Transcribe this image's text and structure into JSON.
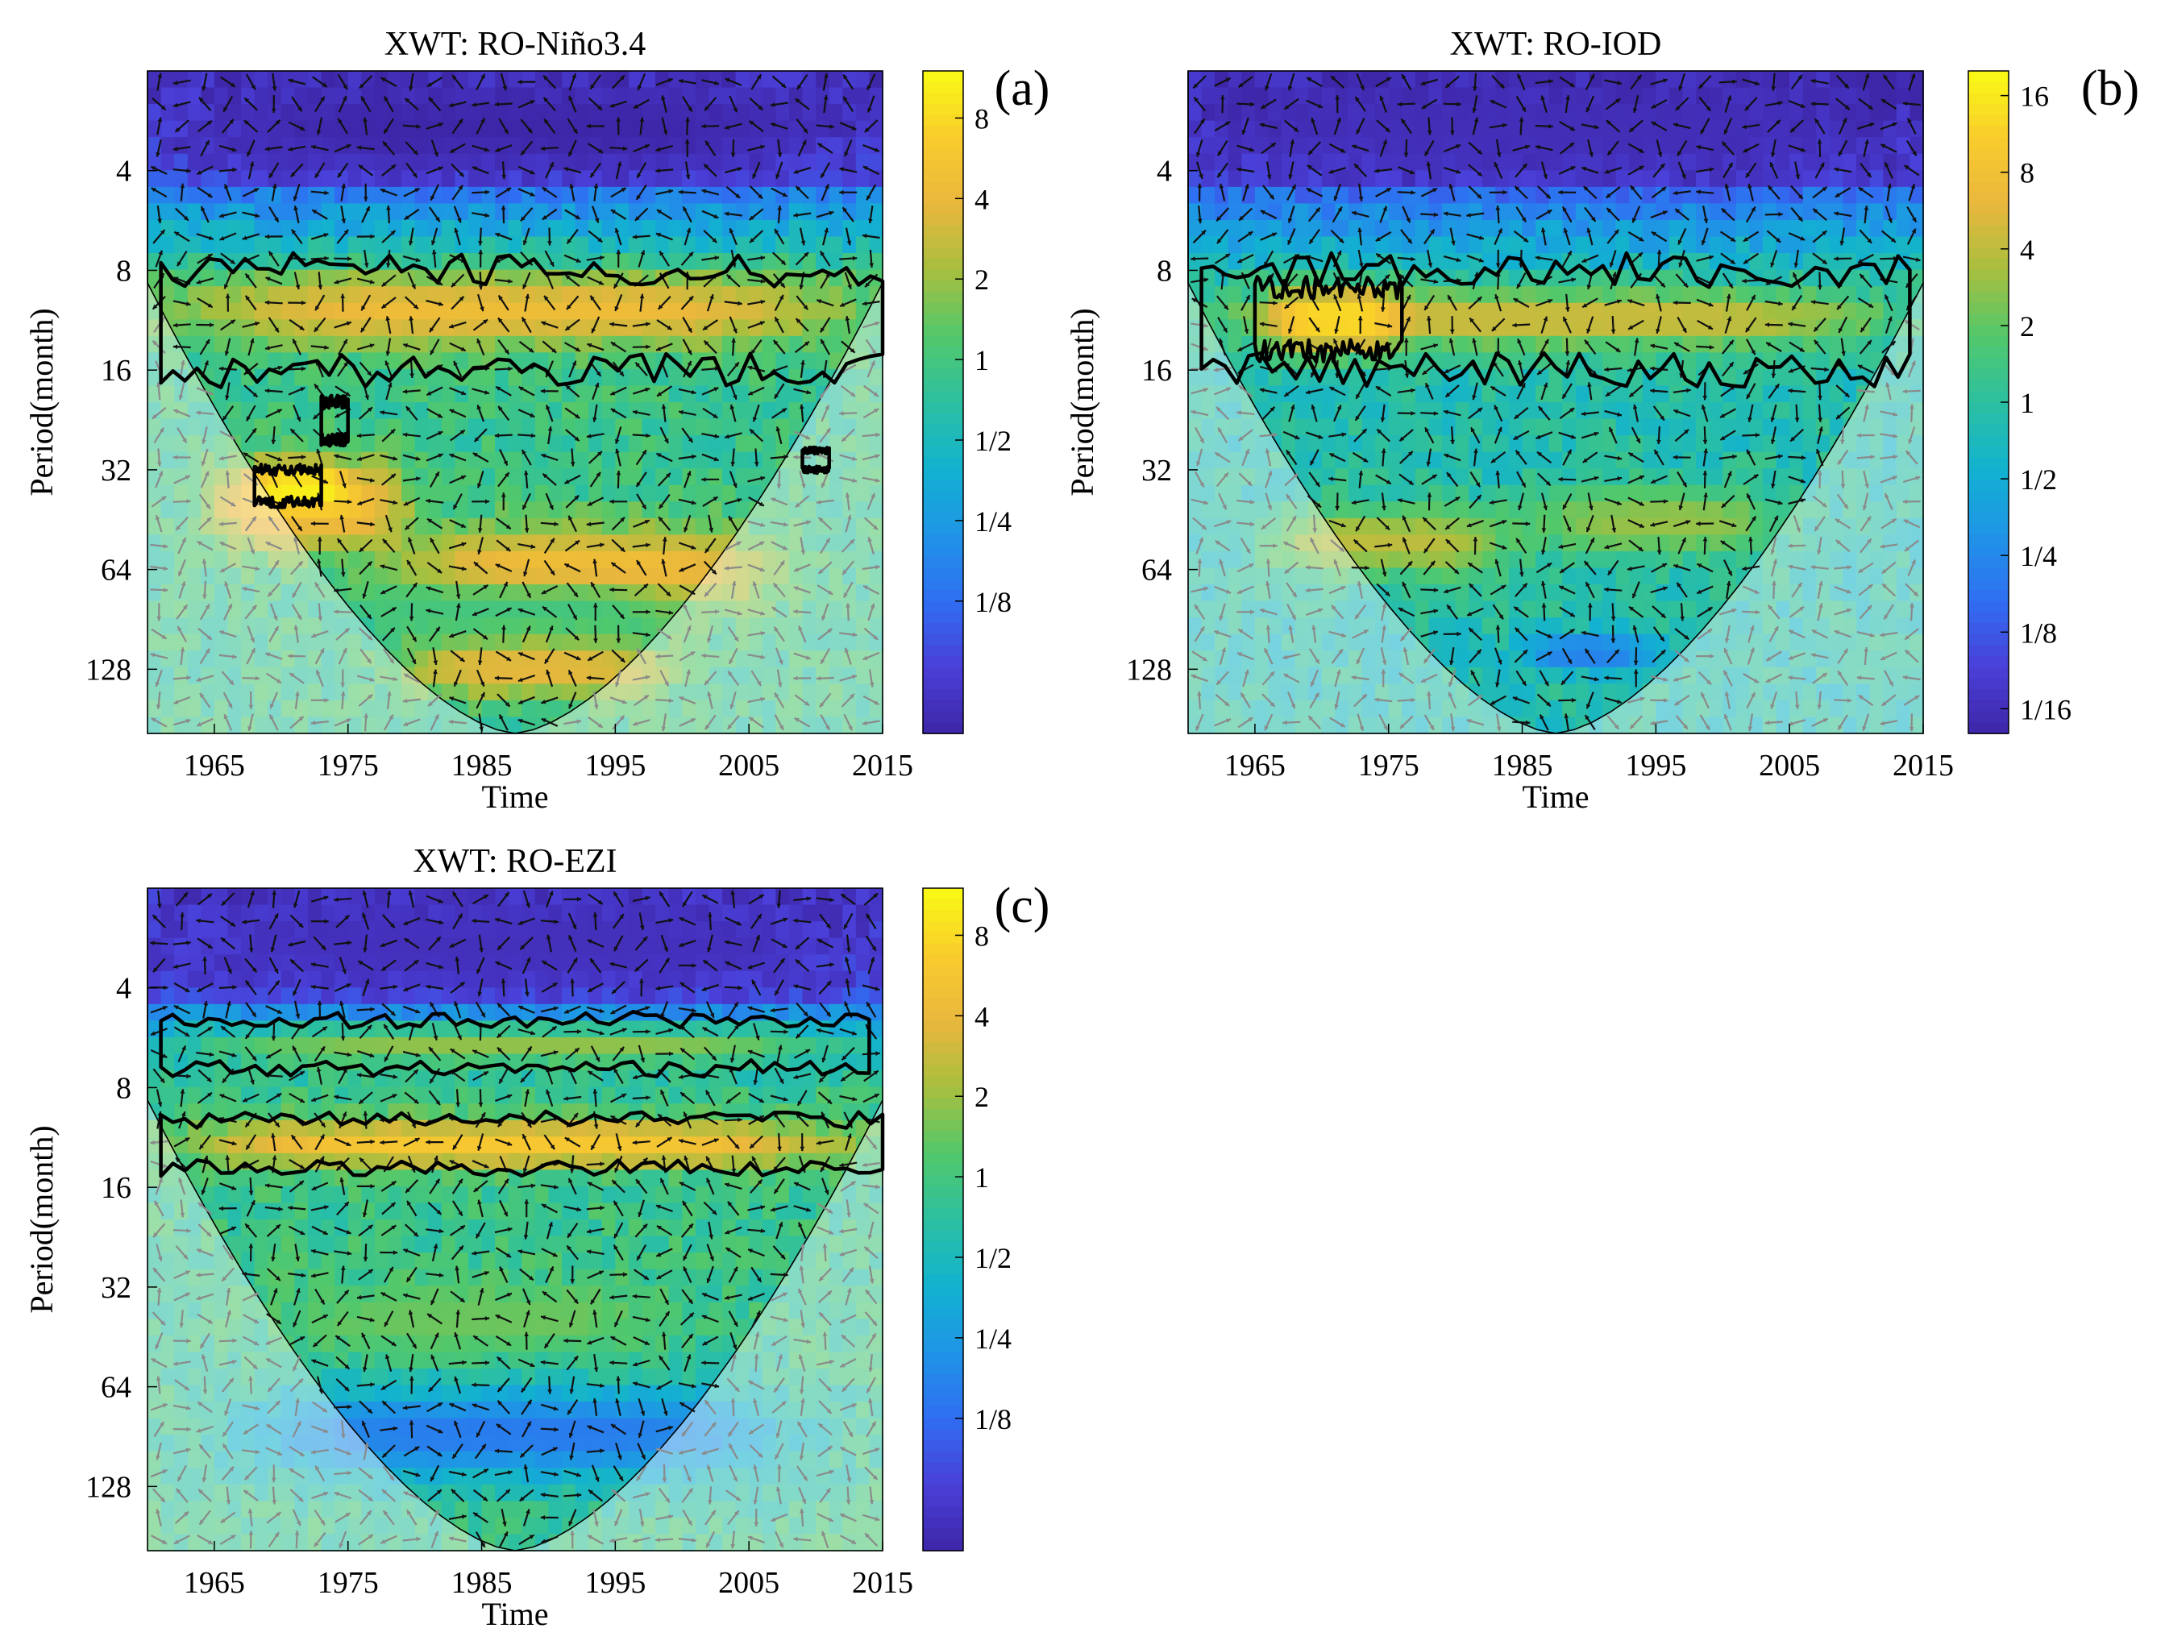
{
  "figure": {
    "label": "Cross wavelet transform panels"
  },
  "colors": {
    "ramp": [
      "#3e26a8",
      "#4a3fd8",
      "#2f6ef2",
      "#1f94e6",
      "#12b2d0",
      "#2cc0a0",
      "#52c86b",
      "#a8bf3e",
      "#eab73d",
      "#f9cc2c",
      "#f9fb14"
    ],
    "contour": "#000000",
    "coi_mask": "#ffffff",
    "arrow_inside": "#111111",
    "arrow_outside": "#8a8a8a"
  },
  "chart_data": [
    {
      "id": "a",
      "type": "heatmap",
      "subtype": "cross-wavelet-power",
      "title": "XWT: RO-Niño3.4",
      "panel_label": "(a)",
      "xlabel": "Time",
      "ylabel": "Period(month)",
      "xlim": [
        1960,
        2015
      ],
      "ylim": [
        2,
        200
      ],
      "y_scale": "log2",
      "x_ticks": [
        1965,
        1975,
        1985,
        1995,
        2005,
        2015
      ],
      "y_ticks": [
        4,
        8,
        16,
        32,
        64,
        128
      ],
      "colorbar": {
        "scale": "log2",
        "range": [
          0.04,
          12
        ],
        "ticks": [
          8,
          4,
          2,
          1,
          0.5,
          0.25,
          0.125
        ],
        "tick_labels": [
          "8",
          "4",
          "2",
          "1",
          "1/2",
          "1/4",
          "1/8"
        ]
      },
      "regions": [
        {
          "x": [
            1960,
            2015
          ],
          "period": [
            8,
            14
          ],
          "power": 4.5
        },
        {
          "x": [
            1964,
            1980
          ],
          "period": [
            28,
            60
          ],
          "power": 6
        },
        {
          "x": [
            1978,
            2008
          ],
          "period": [
            45,
            90
          ],
          "power": 5
        },
        {
          "x": [
            1978,
            2000
          ],
          "period": [
            100,
            160
          ],
          "power": 4
        },
        {
          "x": [
            1968,
            1975
          ],
          "period": [
            32,
            40
          ],
          "power": 12
        },
        {
          "x": [
            1975,
            2000
          ],
          "period": [
            70,
            100
          ],
          "power": 1
        },
        {
          "x": [
            1960,
            2015
          ],
          "period": [
            2,
            4.5
          ],
          "power": 0.04
        }
      ],
      "significant_contours": [
        {
          "x": [
            1961,
            2015
          ],
          "period": [
            8,
            16
          ]
        },
        {
          "x": [
            1968,
            1973
          ],
          "period": [
            32,
            40
          ]
        },
        {
          "x": [
            1973,
            1975
          ],
          "period": [
            20,
            26
          ]
        },
        {
          "x": [
            2009,
            2011
          ],
          "period": [
            28,
            32
          ]
        }
      ]
    },
    {
      "id": "b",
      "type": "heatmap",
      "subtype": "cross-wavelet-power",
      "title": "XWT: RO-IOD",
      "panel_label": "(b)",
      "xlabel": "Time",
      "ylabel": "Period(month)",
      "xlim": [
        1960,
        2015
      ],
      "ylim": [
        2,
        200
      ],
      "y_scale": "log2",
      "x_ticks": [
        1965,
        1975,
        1985,
        1995,
        2005,
        2015
      ],
      "y_ticks": [
        4,
        8,
        16,
        32,
        64,
        128
      ],
      "colorbar": {
        "scale": "log2",
        "range": [
          0.05,
          20
        ],
        "ticks": [
          16,
          8,
          4,
          2,
          1,
          0.5,
          0.25,
          0.125,
          0.0625
        ],
        "tick_labels": [
          "16",
          "8",
          "4",
          "2",
          "1",
          "1/2",
          "1/4",
          "1/8",
          "1/16"
        ]
      },
      "regions": [
        {
          "x": [
            1960,
            2015
          ],
          "period": [
            9,
            14
          ],
          "power": 5
        },
        {
          "x": [
            1966,
            1976
          ],
          "period": [
            9,
            14
          ],
          "power": 14
        },
        {
          "x": [
            1965,
            1985
          ],
          "period": [
            40,
            70
          ],
          "power": 4
        },
        {
          "x": [
            1985,
            2005
          ],
          "period": [
            35,
            60
          ],
          "power": 3
        },
        {
          "x": [
            1960,
            2015
          ],
          "period": [
            2,
            4.5
          ],
          "power": 0.06
        },
        {
          "x": [
            1985,
            1995
          ],
          "period": [
            100,
            130
          ],
          "power": 0.2
        }
      ],
      "significant_contours": [
        {
          "x": [
            1961,
            2014
          ],
          "period": [
            8,
            16
          ]
        },
        {
          "x": [
            1965,
            1976
          ],
          "period": [
            9,
            14
          ]
        }
      ]
    },
    {
      "id": "c",
      "type": "heatmap",
      "subtype": "cross-wavelet-power",
      "title": "XWT: RO-EZI",
      "panel_label": "(c)",
      "xlabel": "Time",
      "ylabel": "Period(month)",
      "xlim": [
        1960,
        2015
      ],
      "ylim": [
        2,
        200
      ],
      "y_scale": "log2",
      "x_ticks": [
        1965,
        1975,
        1985,
        1995,
        2005,
        2015
      ],
      "y_ticks": [
        4,
        8,
        16,
        32,
        64,
        128
      ],
      "colorbar": {
        "scale": "log2",
        "range": [
          0.04,
          12
        ],
        "ticks": [
          8,
          4,
          2,
          1,
          0.5,
          0.25,
          0.125
        ],
        "tick_labels": [
          "8",
          "4",
          "2",
          "1",
          "1/2",
          "1/4",
          "1/8"
        ]
      },
      "regions": [
        {
          "x": [
            1960,
            2015
          ],
          "period": [
            10,
            14
          ],
          "power": 6
        },
        {
          "x": [
            1960,
            2015
          ],
          "period": [
            5,
            7
          ],
          "power": 2
        },
        {
          "x": [
            1960,
            2015
          ],
          "period": [
            2,
            4.5
          ],
          "power": 0.05
        },
        {
          "x": [
            1970,
            2000
          ],
          "period": [
            30,
            55
          ],
          "power": 1.5
        },
        {
          "x": [
            1965,
            2010
          ],
          "period": [
            60,
            130
          ],
          "power": 0.15
        }
      ],
      "significant_contours": [
        {
          "x": [
            1961,
            2015
          ],
          "period": [
            10,
            14
          ]
        },
        {
          "x": [
            1961,
            2014
          ],
          "period": [
            5,
            7
          ]
        }
      ]
    }
  ]
}
